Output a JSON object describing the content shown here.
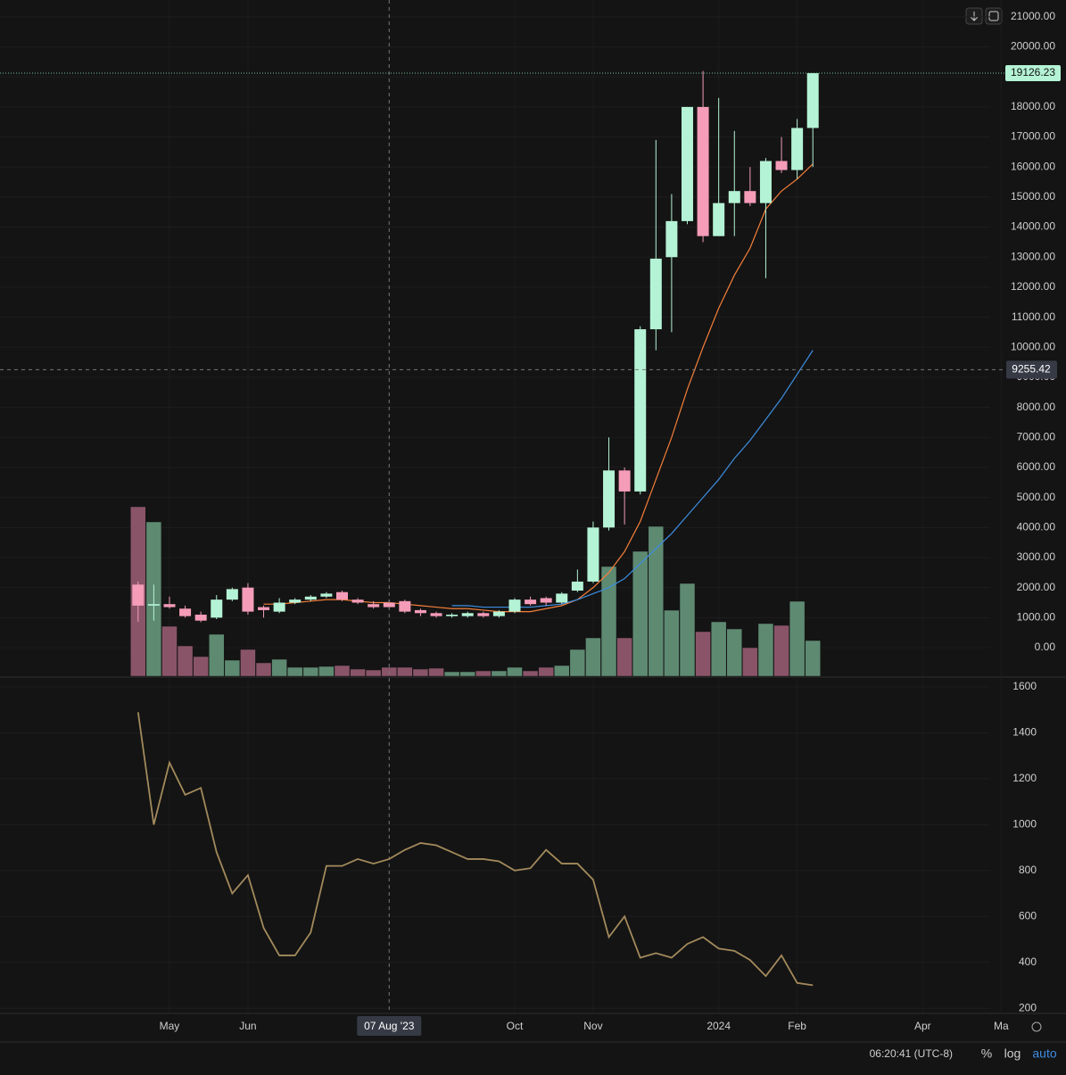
{
  "charts": [
    {
      "type": "candlestick",
      "xlim": [
        -8.8,
        54.3
      ],
      "ylim": [
        -950,
        21560
      ],
      "yticks": [
        {
          "value": 0,
          "label": "0.00"
        },
        {
          "value": 1000,
          "label": "1000.00"
        },
        {
          "value": 2000,
          "label": "2000.00"
        },
        {
          "value": 3000,
          "label": "3000.00"
        },
        {
          "value": 4000,
          "label": "4000.00"
        },
        {
          "value": 5000,
          "label": "5000.00"
        },
        {
          "value": 6000,
          "label": "6000.00"
        },
        {
          "value": 7000,
          "label": "7000.00"
        },
        {
          "value": 8000,
          "label": "8000.00"
        },
        {
          "value": 9000,
          "label": "9000.00"
        },
        {
          "value": 10000,
          "label": "10000.00"
        },
        {
          "value": 11000,
          "label": "11000.00"
        },
        {
          "value": 12000,
          "label": "12000.00"
        },
        {
          "value": 13000,
          "label": "13000.00"
        },
        {
          "value": 14000,
          "label": "14000.00"
        },
        {
          "value": 15000,
          "label": "15000.00"
        },
        {
          "value": 16000,
          "label": "16000.00"
        },
        {
          "value": 17000,
          "label": "17000.00"
        },
        {
          "value": 18000,
          "label": "18000.00"
        },
        {
          "value": 19000,
          "label": "19000.00"
        },
        {
          "value": 20000,
          "label": "20000.00"
        },
        {
          "value": 21000,
          "label": "21000.00"
        }
      ],
      "xticks": [
        {
          "value": 2,
          "label": "May"
        },
        {
          "value": 7,
          "label": "Jun"
        },
        {
          "value": 24,
          "label": "Oct"
        },
        {
          "value": 29,
          "label": "Nov"
        },
        {
          "value": 37,
          "label": "2024"
        },
        {
          "value": 42,
          "label": "Feb"
        },
        {
          "value": 50,
          "label": "Apr"
        },
        {
          "value": 55,
          "label": "Ma"
        }
      ],
      "up_color": "#b4f3d5",
      "down_color": "#f49cb8",
      "open": [
        2100,
        1400,
        1450,
        1300,
        1100,
        1000,
        1600,
        2000,
        1350,
        1200,
        1500,
        1600,
        1700,
        1850,
        1600,
        1450,
        1500,
        1550,
        1250,
        1150,
        1050,
        1050,
        1150,
        1050,
        1200,
        1600,
        1650,
        1500,
        1900,
        2200,
        4000,
        5900,
        5200,
        10600,
        13000,
        14200,
        18000,
        13700,
        14800,
        15200,
        14800,
        16200,
        15900,
        17300
      ],
      "high": [
        2200,
        2100,
        1700,
        1400,
        1200,
        1750,
        2000,
        2150,
        1400,
        1650,
        1650,
        1750,
        1850,
        1900,
        1650,
        1550,
        1600,
        1600,
        1300,
        1200,
        1150,
        1200,
        1200,
        1250,
        1650,
        1700,
        1700,
        1850,
        2600,
        4200,
        7000,
        6000,
        10700,
        16900,
        15100,
        18000,
        19200,
        18300,
        17200,
        16000,
        16300,
        17000,
        17600,
        19126.23
      ],
      "low": [
        860,
        900,
        1300,
        1000,
        850,
        950,
        1550,
        1100,
        1000,
        1150,
        1450,
        1550,
        1650,
        1550,
        1450,
        1300,
        1300,
        1150,
        1050,
        1000,
        1000,
        1000,
        1000,
        1000,
        1150,
        1400,
        1400,
        1450,
        1850,
        2150,
        3900,
        4100,
        5100,
        9900,
        10500,
        14100,
        13500,
        13700,
        13700,
        14700,
        12300,
        15800,
        15600,
        16000
      ],
      "close": [
        1400,
        1450,
        1350,
        1050,
        900,
        1600,
        1950,
        1200,
        1250,
        1500,
        1600,
        1700,
        1800,
        1600,
        1500,
        1350,
        1350,
        1200,
        1150,
        1050,
        1100,
        1150,
        1050,
        1200,
        1600,
        1450,
        1500,
        1800,
        2200,
        4000,
        5900,
        5200,
        10600,
        12950,
        14200,
        18000,
        13700,
        14800,
        15200,
        14800,
        16200,
        15900,
        17300,
        19126.23
      ],
      "volume": [
        190,
        173,
        56,
        34,
        22,
        47,
        18,
        30,
        15,
        19,
        10,
        10,
        11,
        12,
        8,
        7,
        10,
        10,
        8,
        9,
        5,
        5,
        6,
        6,
        10,
        6,
        10,
        12,
        30,
        43,
        123,
        43,
        140,
        168,
        74,
        104,
        50,
        61,
        53,
        32,
        59,
        57,
        84,
        40
      ],
      "series": [
        {
          "color": "#f57f3a",
          "values": [
            null,
            null,
            null,
            null,
            null,
            null,
            null,
            null,
            1450,
            1450,
            1500,
            1550,
            1600,
            1600,
            1550,
            1500,
            1500,
            1450,
            1400,
            1350,
            1300,
            1300,
            1250,
            1200,
            1200,
            1200,
            1300,
            1400,
            1600,
            2000,
            2500,
            3200,
            4200,
            5600,
            7000,
            8600,
            10000,
            11300,
            12400,
            13300,
            14600,
            15200,
            15600,
            16100
          ]
        },
        {
          "color": "#3d8de0",
          "values": [
            null,
            null,
            null,
            null,
            null,
            null,
            null,
            null,
            null,
            null,
            null,
            null,
            null,
            null,
            null,
            null,
            null,
            null,
            null,
            null,
            1400,
            1400,
            1350,
            1350,
            1350,
            1350,
            1400,
            1450,
            1600,
            1800,
            2000,
            2300,
            2800,
            3300,
            3800,
            4400,
            5000,
            5600,
            6300,
            6900,
            7600,
            8300,
            9100,
            9900
          ]
        }
      ],
      "last_price": 19126.23,
      "crosshair": {
        "x": 16,
        "x_label": "07 Aug '23",
        "y": 9255.42
      }
    },
    {
      "type": "line",
      "color": "#a38a5c",
      "ylim": [
        181,
        1639
      ],
      "yticks": [
        200,
        400,
        600,
        800,
        1000,
        1200,
        1400,
        1600
      ],
      "values": [
        1490,
        1000,
        1270,
        1130,
        1160,
        880,
        700,
        780,
        550,
        430,
        430,
        530,
        820,
        820,
        850,
        830,
        850,
        890,
        920,
        910,
        880,
        850,
        850,
        840,
        800,
        810,
        890,
        830,
        830,
        760,
        510,
        600,
        420,
        440,
        420,
        480,
        510,
        460,
        450,
        410,
        340,
        430,
        310,
        300
      ]
    }
  ],
  "status": {
    "time": "06:20:41 (UTC-8)",
    "buttons": [
      "%",
      "log",
      "auto"
    ]
  }
}
